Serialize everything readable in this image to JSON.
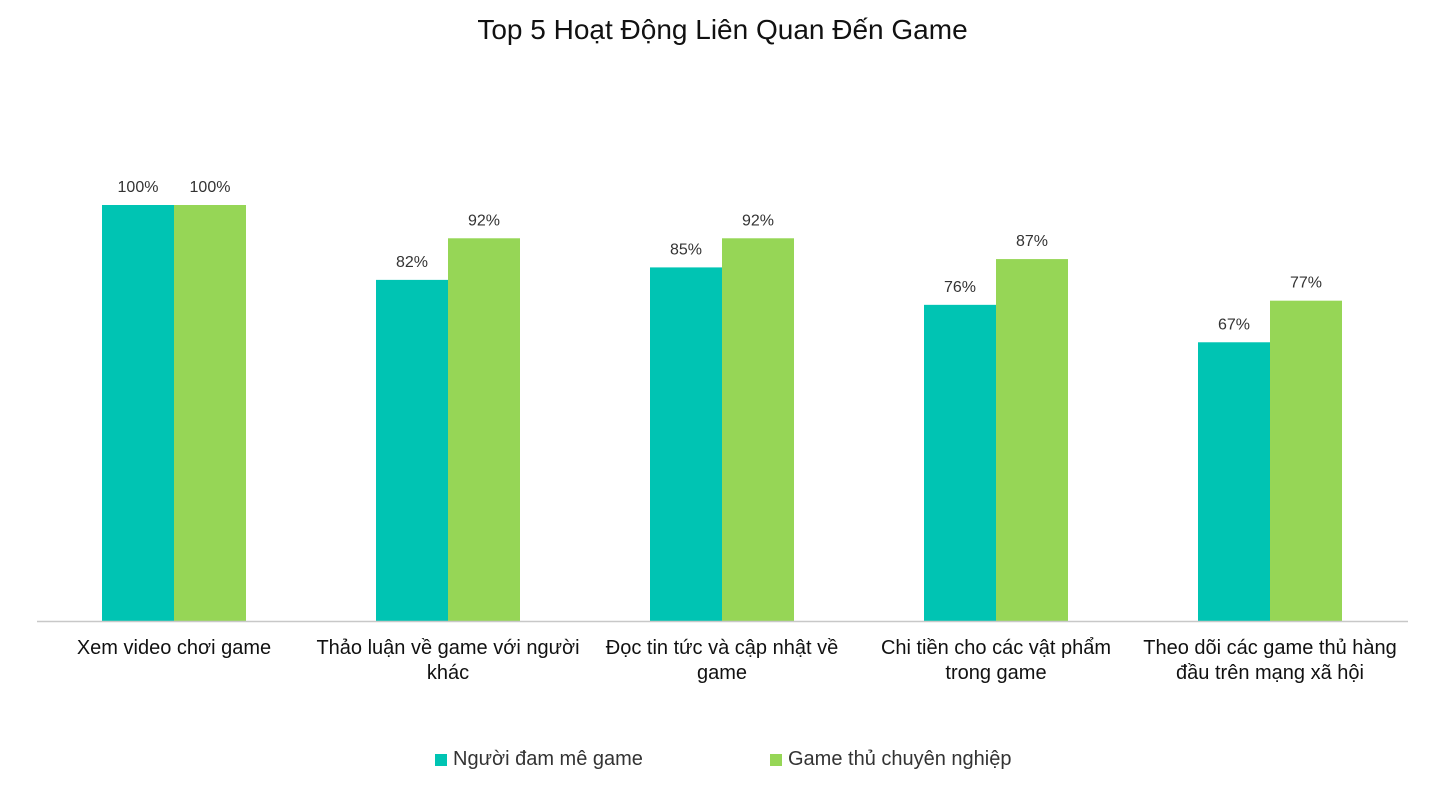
{
  "chart_data": {
    "type": "bar",
    "title": "Top 5 Hoạt Động Liên Quan Đến Game",
    "categories": [
      [
        "Xem video chơi game"
      ],
      [
        "Thảo luận về game với người",
        "khác"
      ],
      [
        "Đọc tin tức và cập nhật về",
        "game"
      ],
      [
        "Chi tiền cho các vật phẩm",
        "trong game"
      ],
      [
        "Theo dõi các game thủ hàng",
        "đầu trên mạng xã hội"
      ]
    ],
    "series": [
      {
        "name": "Người đam mê game",
        "color": "#00C4B3",
        "values": [
          100,
          82,
          85,
          76,
          67
        ],
        "labels": [
          "100%",
          "82%",
          "85%",
          "76%",
          "67%"
        ]
      },
      {
        "name": "Game thủ chuyên nghiệp",
        "color": "#96D656",
        "values": [
          100,
          92,
          92,
          87,
          77
        ],
        "labels": [
          "100%",
          "92%",
          "92%",
          "87%",
          "77%"
        ]
      }
    ],
    "ylim": [
      0,
      100
    ],
    "grid": false,
    "legend_position": "bottom"
  }
}
